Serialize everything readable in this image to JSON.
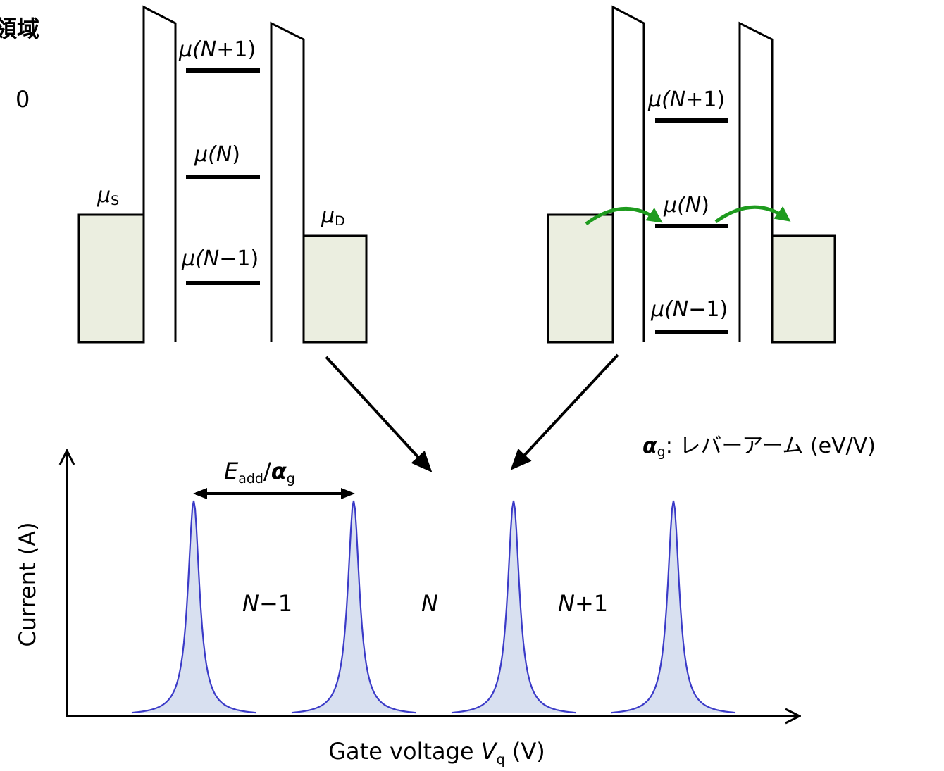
{
  "header": {
    "title_fragment": "領域",
    "zero_fragment": "0"
  },
  "left_diagram": {
    "mu_source": {
      "mu": "μ",
      "sub": "S"
    },
    "mu_drain": {
      "mu": "μ",
      "sub": "D"
    },
    "levels": [
      {
        "mu": "μ(",
        "n": "N",
        "tail": "+1)"
      },
      {
        "mu": "μ(",
        "n": "N",
        "tail": ")"
      },
      {
        "mu": "μ(",
        "n": "N",
        "tail": "−1)"
      }
    ]
  },
  "right_diagram": {
    "levels": [
      {
        "mu": "μ(",
        "n": "N",
        "tail": "+1)"
      },
      {
        "mu": "μ(",
        "n": "N",
        "tail": ")"
      },
      {
        "mu": "μ(",
        "n": "N",
        "tail": "−1)"
      }
    ]
  },
  "lever_arm_note": {
    "alpha": "α",
    "sub": "g",
    "text": ": レバーアーム (eV/V)"
  },
  "chart": {
    "ylabel": "Current (A)",
    "xlabel_prefix": "Gate voltage ",
    "xlabel_var": "V",
    "xlabel_sub": "q",
    "xlabel_suffix": " (V)",
    "spacing_label": {
      "e": "E",
      "e_sub": "add",
      "slash": "/",
      "alpha": "α",
      "alpha_sub": "g"
    },
    "regions": [
      {
        "n": "N",
        "tail": "−1"
      },
      {
        "n": "N",
        "tail": ""
      },
      {
        "n": "N",
        "tail": "+1"
      }
    ]
  },
  "colors": {
    "reservoir_fill": "#ebeee0",
    "peak_line": "#3b3bc8",
    "peak_fill": "#d8e0f0",
    "tunnel_arrow": "#1e9b1e"
  },
  "chart_data": {
    "type": "line",
    "title": "",
    "xlabel": "Gate voltage Vq (V)",
    "ylabel": "Current (A)",
    "series": [
      {
        "peaks": [
          1,
          2,
          3,
          4
        ],
        "relative_height": [
          1,
          1,
          1,
          1
        ]
      }
    ],
    "annotations": [
      "Eadd/αg",
      "N−1",
      "N",
      "N+1"
    ]
  }
}
